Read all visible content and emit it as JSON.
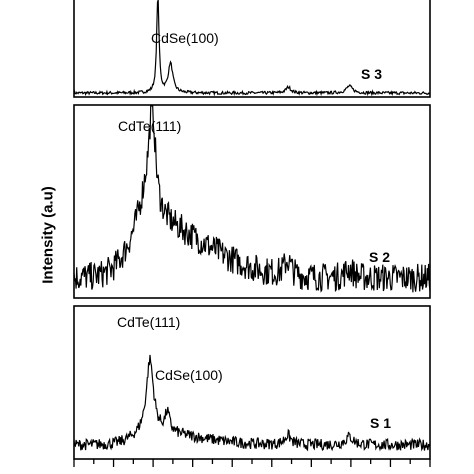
{
  "chart_data": {
    "type": "line",
    "title": "",
    "xlabel": "",
    "ylabel": "Intensity (a.u)",
    "grid": false,
    "legend": "none",
    "x_ticks_labeled": false,
    "panels": [
      {
        "name": "S 3",
        "annotations": [
          "CdSe(100)"
        ],
        "peaks": [
          {
            "x": 25.6,
            "height": 0.98,
            "width": 0.18
          },
          {
            "x": 27.2,
            "height": 0.3,
            "width": 0.35
          }
        ],
        "background": 0.02,
        "noise": 0.015,
        "minor_peaks": [
          {
            "x": 42.1,
            "height": 0.06,
            "width": 0.4
          },
          {
            "x": 49.8,
            "height": 0.07,
            "width": 0.5
          }
        ]
      },
      {
        "name": "S 2",
        "annotations": [
          "CdTe(111)"
        ],
        "peaks": [
          {
            "x": 24.9,
            "height": 0.62,
            "width": 0.45
          },
          {
            "x": 24.3,
            "height": 0.25,
            "width": 1.2
          }
        ],
        "background": 0.12,
        "noise": 0.06,
        "broad": {
          "x": 24.8,
          "height": 0.35,
          "width": 7.0
        },
        "minor_peaks": [
          {
            "x": 42.0,
            "height": 0.1,
            "width": 0.5
          },
          {
            "x": 49.8,
            "height": 0.06,
            "width": 0.6
          }
        ]
      },
      {
        "name": "S 1",
        "annotations": [
          "CdTe(111)",
          "CdSe(100)"
        ],
        "peaks": [
          {
            "x": 24.6,
            "height": 0.62,
            "width": 0.55
          },
          {
            "x": 26.8,
            "height": 0.16,
            "width": 0.35
          }
        ],
        "background": 0.06,
        "noise": 0.03,
        "broad": {
          "x": 24.8,
          "height": 0.1,
          "width": 6.0
        },
        "minor_peaks": [
          {
            "x": 42.0,
            "height": 0.08,
            "width": 0.5
          },
          {
            "x": 49.8,
            "height": 0.07,
            "width": 0.6
          }
        ]
      }
    ],
    "xlim": [
      15,
      60
    ]
  }
}
